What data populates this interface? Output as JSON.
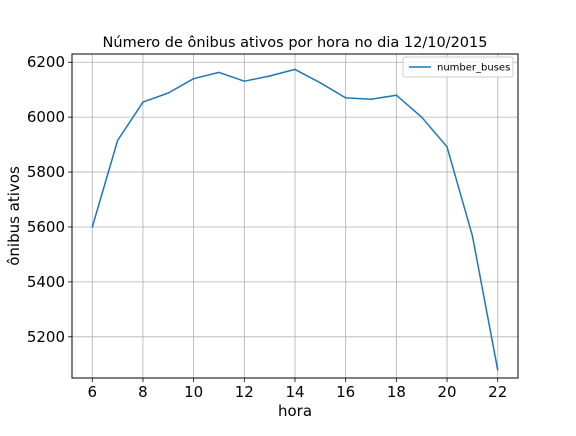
{
  "chart_data": {
    "type": "line",
    "title": "Número de ônibus ativos por hora no dia 12/10/2015",
    "xlabel": "hora",
    "ylabel": "ônibus ativos",
    "xlim": [
      5.2,
      22.8
    ],
    "ylim": [
      5050,
      6230
    ],
    "xticks": [
      6,
      8,
      10,
      12,
      14,
      16,
      18,
      20,
      22
    ],
    "yticks": [
      5200,
      5400,
      5600,
      5800,
      6000,
      6200
    ],
    "grid": true,
    "legend": {
      "position": "top-right"
    },
    "series": [
      {
        "name": "number_buses",
        "color": "#1f77b4",
        "x": [
          6,
          7,
          8,
          9,
          10,
          11,
          12,
          13,
          14,
          15,
          16,
          17,
          18,
          19,
          20,
          21,
          22
        ],
        "y": [
          5600,
          5915,
          6055,
          6088,
          6140,
          6163,
          6131,
          6150,
          6174,
          6125,
          6070,
          6065,
          6080,
          6000,
          5892,
          5568,
          5080
        ]
      }
    ]
  }
}
